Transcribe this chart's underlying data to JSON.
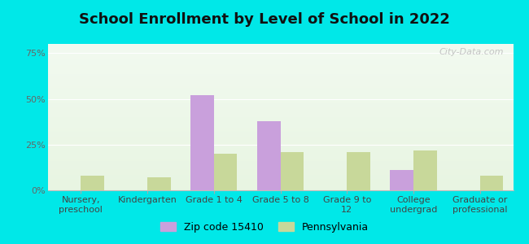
{
  "title": "School Enrollment by Level of School in 2022",
  "categories": [
    "Nursery,\npreschool",
    "Kindergarten",
    "Grade 1 to 4",
    "Grade 5 to 8",
    "Grade 9 to\n12",
    "College\nundergrad",
    "Graduate or\nprofessional"
  ],
  "zip_values": [
    0,
    0,
    52,
    38,
    0,
    11,
    0
  ],
  "pa_values": [
    8,
    7,
    20,
    21,
    21,
    22,
    8
  ],
  "zip_color": "#c9a0dc",
  "pa_color": "#c8d89a",
  "outer_bg": "#00e8e8",
  "plot_bg_grad_top": "#f2faf0",
  "plot_bg_grad_bottom": "#e8f5e2",
  "yticks": [
    0,
    25,
    50,
    75
  ],
  "ylim": [
    0,
    80
  ],
  "bar_width": 0.35,
  "legend_zip_label": "Zip code 15410",
  "legend_pa_label": "Pennsylvania",
  "title_fontsize": 13,
  "tick_fontsize": 8,
  "watermark": "City-Data.com"
}
